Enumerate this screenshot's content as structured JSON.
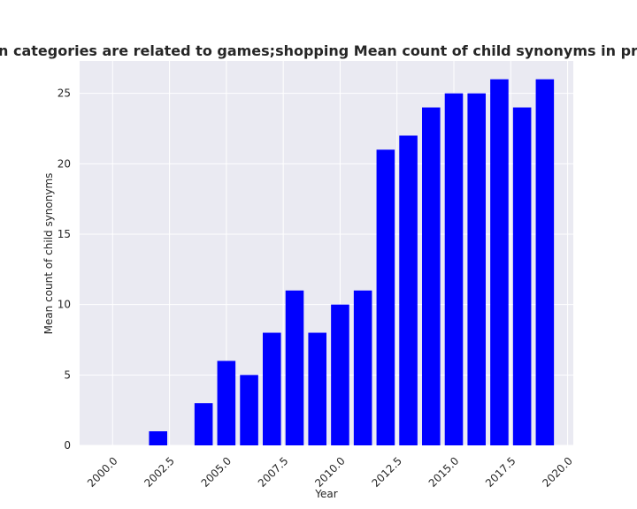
{
  "chart_data": {
    "type": "bar",
    "title": "Mean count of child synonyms in privacy policies b",
    "title_prefix": "n categories are related to games;shopping",
    "xlabel": "Year",
    "ylabel": "Mean count of child synonyms",
    "x": [
      2002,
      2004,
      2005,
      2006,
      2007,
      2008,
      2009,
      2010,
      2011,
      2012,
      2013,
      2014,
      2015,
      2016,
      2017,
      2018,
      2019
    ],
    "values": [
      1,
      3,
      6,
      5,
      8,
      11,
      8,
      10,
      11,
      21,
      22,
      24,
      25,
      25,
      26,
      24,
      26
    ],
    "xlim": [
      1998.55,
      2020.25
    ],
    "ylim": [
      0,
      27.3
    ],
    "xticks": [
      2000.0,
      2002.5,
      2005.0,
      2007.5,
      2010.0,
      2012.5,
      2015.0,
      2017.5,
      2020.0
    ],
    "xtick_labels": [
      "2000.0",
      "2002.5",
      "2005.0",
      "2007.5",
      "2010.0",
      "2012.5",
      "2015.0",
      "2017.5",
      "2020.0"
    ],
    "yticks": [
      0,
      5,
      10,
      15,
      20,
      25
    ],
    "ytick_labels": [
      "0",
      "5",
      "10",
      "15",
      "20",
      "25"
    ],
    "bar_width": 0.8,
    "bar_color": "#0000ff",
    "grid": true,
    "plot_background": "#eaeaf2",
    "grid_color": "#ffffff"
  }
}
